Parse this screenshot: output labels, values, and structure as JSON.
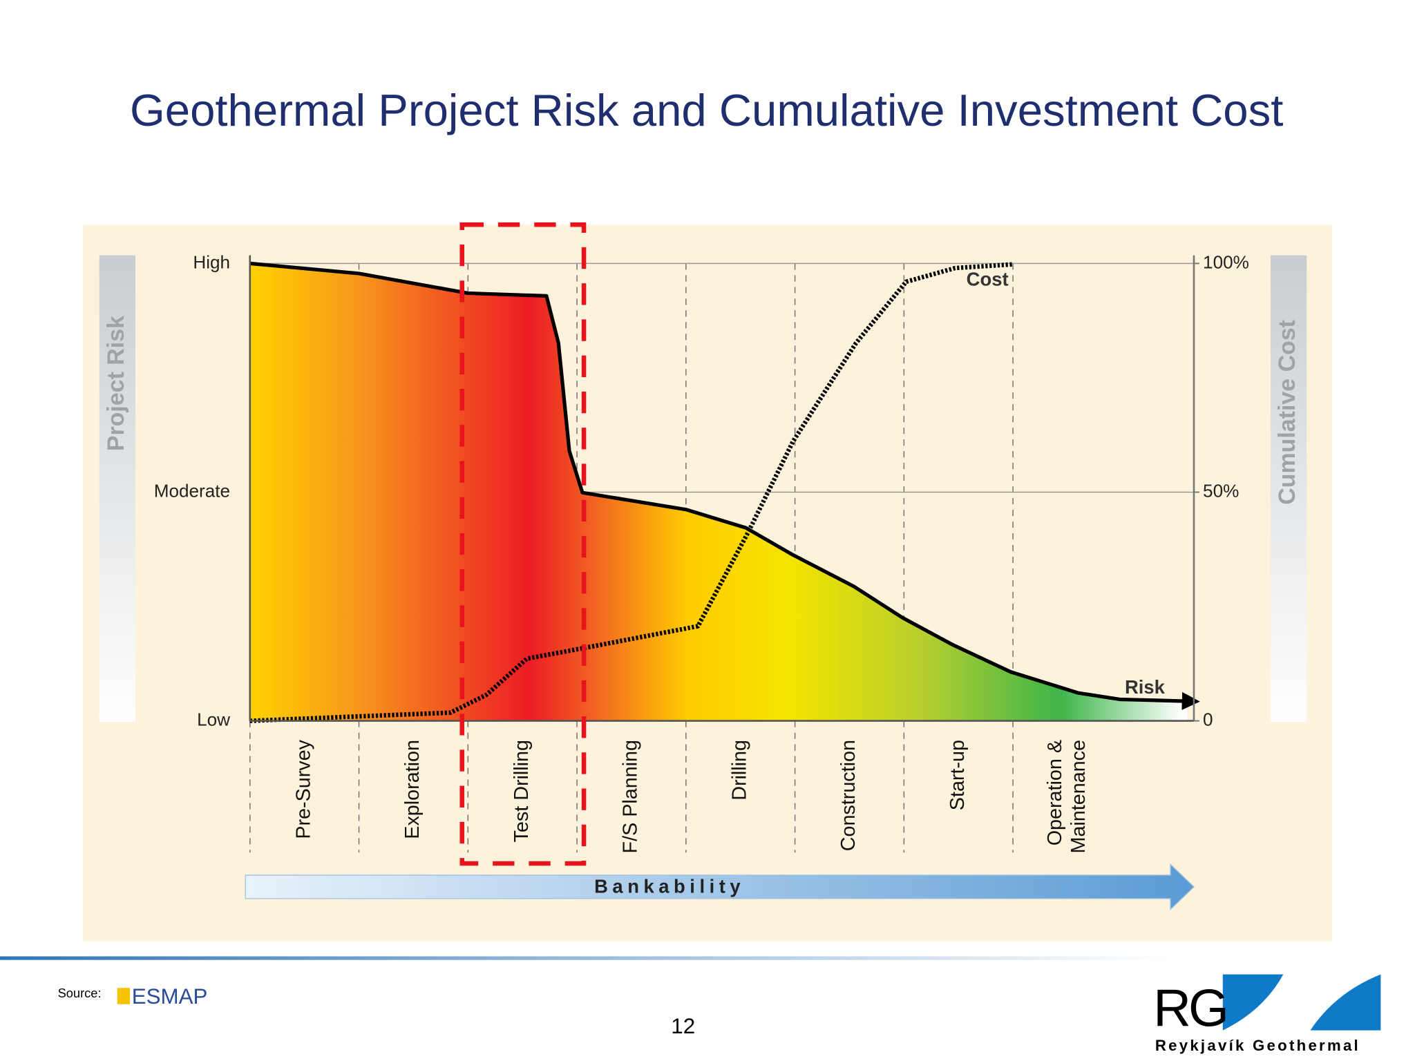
{
  "title": "Geothermal Project Risk and Cumulative Investment Cost",
  "chart_data": {
    "type": "line",
    "ylabel": "Project Risk",
    "y2label": "Cumulative Cost",
    "annotation": "Bankability",
    "categories": [
      "Pre-Survey",
      "Exploration",
      "Test Drilling",
      "F/S Planning",
      "Drilling",
      "Construction",
      "Start-up",
      "Operation & Maintenance"
    ],
    "xlim": [
      0,
      8.66
    ],
    "ylim": [
      0,
      100
    ],
    "yticks": [
      {
        "value": 0,
        "label": "Low"
      },
      {
        "value": 50,
        "label": "Moderate"
      },
      {
        "value": 100,
        "label": "High"
      }
    ],
    "y2lim": [
      0,
      100
    ],
    "y2ticks": [
      0,
      {
        "value": 50,
        "label": "50%"
      },
      {
        "value": 100,
        "label": "100%"
      }
    ],
    "grid": true,
    "series": [
      {
        "name": "Risk",
        "color": "#000000",
        "x": [
          0,
          1,
          2,
          2.72,
          2.83,
          2.93,
          3.05,
          4,
          4.55,
          4.98,
          5.54,
          5.99,
          6.45,
          6.98,
          7.6,
          7.98,
          8.6
        ],
        "values": [
          100,
          97.8,
          93.5,
          92.9,
          82.6,
          59,
          49.9,
          46.2,
          42.2,
          36.3,
          29.4,
          22.5,
          16.6,
          10.7,
          6.1,
          4.7,
          4.3
        ]
      },
      {
        "name": "Cost",
        "color": "#000000",
        "axis": "y2",
        "x": [
          0,
          1.84,
          2.17,
          2.54,
          3.08,
          4.11,
          4.57,
          4.98,
          5.56,
          6.02,
          6.47,
          7.0
        ],
        "values": [
          0,
          1.8,
          5.7,
          13.6,
          16,
          20.7,
          41.2,
          61,
          82.6,
          96,
          99,
          99.8
        ]
      }
    ]
  },
  "footer": {
    "source": "Source:",
    "source_logo": "ESMAP",
    "page": "12",
    "logo": "RG",
    "company": "Reykjavík Geothermal"
  }
}
